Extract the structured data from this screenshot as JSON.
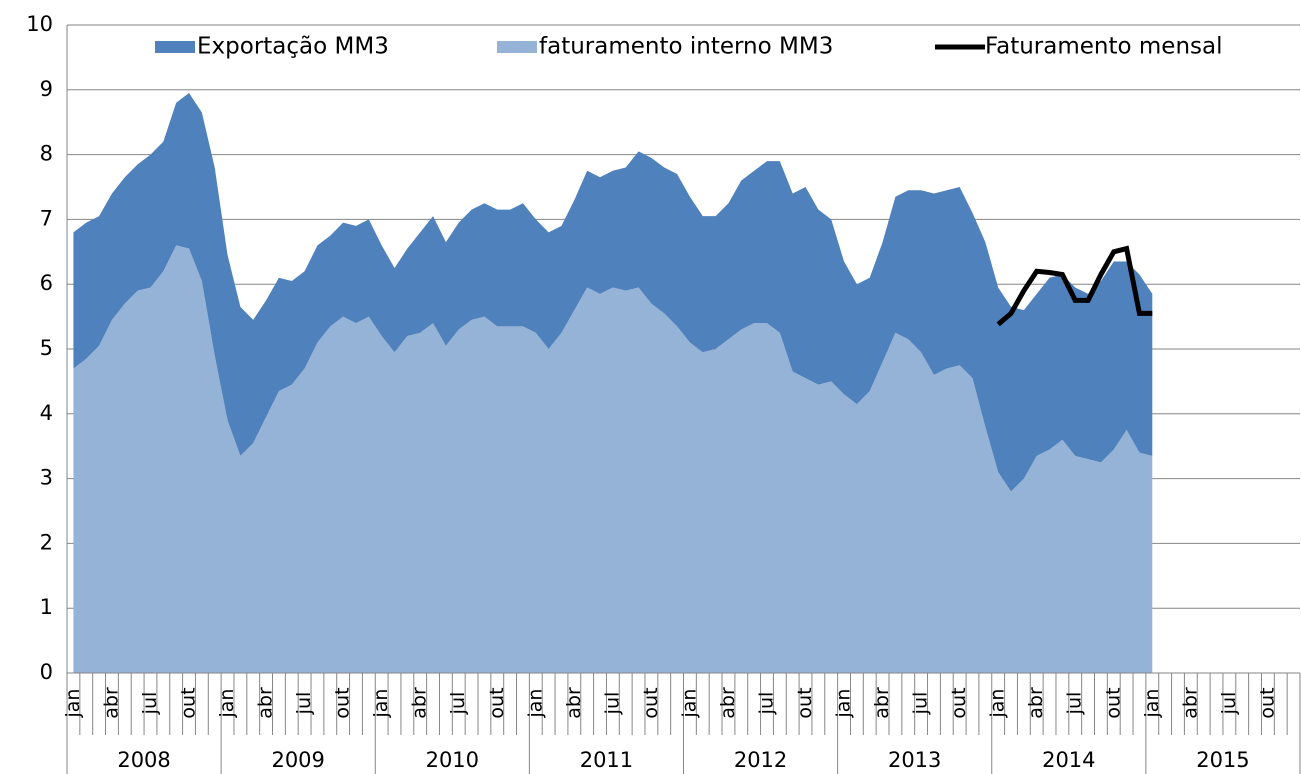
{
  "chart_data": {
    "type": "stacked_area",
    "categories": [
      "jan",
      null,
      null,
      "abr",
      null,
      null,
      "jul",
      null,
      null,
      "out",
      null,
      null,
      "jan",
      null,
      null,
      "abr",
      null,
      null,
      "jul",
      null,
      null,
      "out",
      null,
      null,
      "jan",
      null,
      null,
      "abr",
      null,
      null,
      "jul",
      null,
      null,
      "out",
      null,
      null,
      "jan",
      null,
      null,
      "abr",
      null,
      null,
      "jul",
      null,
      null,
      "out",
      null,
      null,
      "jan",
      null,
      null,
      "abr",
      null,
      null,
      "jul",
      null,
      null,
      "out",
      null,
      null,
      "jan",
      null,
      null,
      "abr",
      null,
      null,
      "jul",
      null,
      null,
      "out",
      null,
      null,
      "jan",
      null,
      null,
      "abr",
      null,
      null,
      "jul",
      null,
      null,
      "out",
      null,
      null,
      "jan",
      null,
      null,
      "abr",
      null,
      null,
      "jul",
      null,
      null,
      "out",
      null,
      null
    ],
    "years": [
      "2008",
      "2009",
      "2010",
      "2011",
      "2012",
      "2013",
      "2014",
      "2015"
    ],
    "series": [
      {
        "name": "Exportação MM3",
        "color": "#4f81bd",
        "kind": "area",
        "values": [
          2.1,
          2.1,
          2.0,
          1.95,
          1.95,
          1.95,
          2.05,
          2.0,
          2.2,
          2.4,
          2.6,
          2.9,
          2.55,
          2.3,
          1.9,
          1.8,
          1.75,
          1.6,
          1.5,
          1.5,
          1.4,
          1.45,
          1.5,
          1.5,
          1.4,
          1.3,
          1.35,
          1.55,
          1.65,
          1.6,
          1.65,
          1.7,
          1.75,
          1.8,
          1.8,
          1.9,
          1.75,
          1.8,
          1.65,
          1.7,
          1.8,
          1.8,
          1.8,
          1.9,
          2.1,
          2.25,
          2.25,
          2.35,
          2.25,
          2.1,
          2.05,
          2.1,
          2.3,
          2.35,
          2.5,
          2.65,
          2.75,
          2.95,
          2.7,
          2.5,
          2.05,
          1.85,
          1.75,
          1.85,
          2.1,
          2.3,
          2.5,
          2.8,
          2.75,
          2.75,
          2.55,
          2.85,
          2.85,
          2.85,
          2.6,
          2.5,
          2.65,
          2.55,
          2.6,
          2.55,
          2.8,
          2.9,
          2.6,
          2.75,
          2.5,
          null,
          null,
          null,
          null,
          null,
          null,
          null,
          null,
          null,
          null,
          null
        ]
      },
      {
        "name": "faturamento interno MM3",
        "color": "#95b3d7",
        "kind": "area",
        "values": [
          4.7,
          4.85,
          5.05,
          5.45,
          5.7,
          5.9,
          5.95,
          6.2,
          6.6,
          6.55,
          6.05,
          4.9,
          3.9,
          3.35,
          3.55,
          3.95,
          4.35,
          4.45,
          4.7,
          5.1,
          5.35,
          5.5,
          5.4,
          5.5,
          5.2,
          4.95,
          5.2,
          5.25,
          5.4,
          5.05,
          5.3,
          5.45,
          5.5,
          5.35,
          5.35,
          5.35,
          5.25,
          5.0,
          5.25,
          5.6,
          5.95,
          5.85,
          5.95,
          5.9,
          5.95,
          5.7,
          5.55,
          5.35,
          5.1,
          4.95,
          5.0,
          5.15,
          5.3,
          5.4,
          5.4,
          5.25,
          4.65,
          4.55,
          4.45,
          4.5,
          4.3,
          4.15,
          4.35,
          4.8,
          5.25,
          5.15,
          4.95,
          4.6,
          4.7,
          4.75,
          4.55,
          3.8,
          3.1,
          2.8,
          3.0,
          3.35,
          3.45,
          3.6,
          3.35,
          3.3,
          3.25,
          3.45,
          3.75,
          3.4,
          3.35,
          null,
          null,
          null,
          null,
          null,
          null,
          null,
          null,
          null,
          null,
          null
        ]
      },
      {
        "name": "Faturamento mensal",
        "color": "#000000",
        "kind": "line",
        "values": [
          null,
          null,
          null,
          null,
          null,
          null,
          null,
          null,
          null,
          null,
          null,
          null,
          null,
          null,
          null,
          null,
          null,
          null,
          null,
          null,
          null,
          null,
          null,
          null,
          null,
          null,
          null,
          null,
          null,
          null,
          null,
          null,
          null,
          null,
          null,
          null,
          null,
          null,
          null,
          null,
          null,
          null,
          null,
          null,
          null,
          null,
          null,
          null,
          null,
          null,
          null,
          null,
          null,
          null,
          null,
          null,
          null,
          null,
          null,
          null,
          null,
          null,
          null,
          null,
          null,
          null,
          null,
          null,
          null,
          null,
          null,
          null,
          5.38,
          5.55,
          5.9,
          6.2,
          6.18,
          6.15,
          5.75,
          5.75,
          6.15,
          6.5,
          6.55,
          5.55,
          5.55,
          null,
          null,
          null,
          null,
          null,
          null,
          null,
          null,
          null,
          null,
          null
        ]
      }
    ],
    "stack_order": [
      1,
      0
    ],
    "ylim": [
      0,
      10
    ],
    "yticks": [
      0,
      1,
      2,
      3,
      4,
      5,
      6,
      7,
      8,
      9,
      10
    ],
    "grid": true,
    "legend": "top"
  }
}
